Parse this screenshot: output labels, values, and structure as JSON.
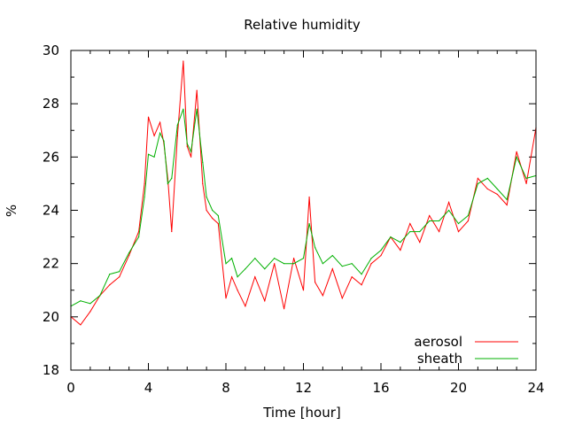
{
  "chart_data": {
    "type": "line",
    "title": "Relative humidity",
    "xlabel": "Time [hour]",
    "ylabel": "%",
    "xlim": [
      0,
      24
    ],
    "ylim": [
      18,
      30
    ],
    "x_ticks": [
      0,
      4,
      8,
      12,
      16,
      20,
      24
    ],
    "y_ticks": [
      18,
      20,
      22,
      24,
      26,
      28,
      30
    ],
    "x_tick_labels": [
      "0",
      "4",
      "8",
      "12",
      "16",
      "20",
      "24"
    ],
    "y_tick_labels": [
      "18",
      "20",
      "22",
      "24",
      "26",
      "28",
      "30"
    ],
    "grid": false,
    "legend_position": "bottom-right",
    "series": [
      {
        "name": "aerosol",
        "color": "#ff0000",
        "x": [
          0,
          0.5,
          1,
          1.5,
          2,
          2.5,
          3,
          3.5,
          3.8,
          4,
          4.3,
          4.6,
          4.8,
          5,
          5.2,
          5.5,
          5.8,
          6,
          6.2,
          6.5,
          6.8,
          7,
          7.3,
          7.6,
          8,
          8.3,
          8.6,
          9,
          9.5,
          10,
          10.5,
          11,
          11.5,
          12,
          12.3,
          12.6,
          13,
          13.5,
          14,
          14.5,
          15,
          15.5,
          16,
          16.5,
          17,
          17.5,
          18,
          18.5,
          19,
          19.5,
          20,
          20.5,
          21,
          21.5,
          22,
          22.5,
          23,
          23.5,
          24
        ],
        "values": [
          20.0,
          19.7,
          20.2,
          20.8,
          21.2,
          21.5,
          22.3,
          23.2,
          25.0,
          27.5,
          26.8,
          27.3,
          26.5,
          25.2,
          23.2,
          26.8,
          29.6,
          26.4,
          26.0,
          28.5,
          25.0,
          24.0,
          23.7,
          23.5,
          20.7,
          21.5,
          21.0,
          20.4,
          21.5,
          20.6,
          22.0,
          20.3,
          22.2,
          21.0,
          24.5,
          21.3,
          20.8,
          21.8,
          20.7,
          21.5,
          21.2,
          22.0,
          22.3,
          23.0,
          22.5,
          23.5,
          22.8,
          23.8,
          23.2,
          24.3,
          23.2,
          23.6,
          25.2,
          24.8,
          24.6,
          24.2,
          26.2,
          25.0,
          27.1
        ]
      },
      {
        "name": "sheath",
        "color": "#00b000",
        "x": [
          0,
          0.5,
          1,
          1.5,
          2,
          2.5,
          3,
          3.5,
          3.8,
          4,
          4.3,
          4.6,
          4.8,
          5,
          5.2,
          5.5,
          5.8,
          6,
          6.2,
          6.5,
          6.8,
          7,
          7.3,
          7.6,
          8,
          8.3,
          8.6,
          9,
          9.5,
          10,
          10.5,
          11,
          11.5,
          12,
          12.3,
          12.6,
          13,
          13.5,
          14,
          14.5,
          15,
          15.5,
          16,
          16.5,
          17,
          17.5,
          18,
          18.5,
          19,
          19.5,
          20,
          20.5,
          21,
          21.5,
          22,
          22.5,
          23,
          23.5,
          24
        ],
        "values": [
          20.4,
          20.6,
          20.5,
          20.8,
          21.6,
          21.7,
          22.4,
          23.0,
          24.5,
          26.1,
          26.0,
          26.9,
          26.6,
          25.0,
          25.2,
          27.2,
          27.8,
          26.5,
          26.2,
          27.8,
          25.8,
          24.5,
          24.0,
          23.8,
          22.0,
          22.2,
          21.5,
          21.8,
          22.2,
          21.8,
          22.2,
          22.0,
          22.0,
          22.2,
          23.5,
          22.6,
          22.0,
          22.3,
          21.9,
          22.0,
          21.6,
          22.2,
          22.5,
          23.0,
          22.8,
          23.2,
          23.2,
          23.6,
          23.6,
          24.0,
          23.5,
          23.8,
          25.0,
          25.2,
          24.8,
          24.4,
          26.0,
          25.2,
          25.3
        ]
      }
    ]
  }
}
